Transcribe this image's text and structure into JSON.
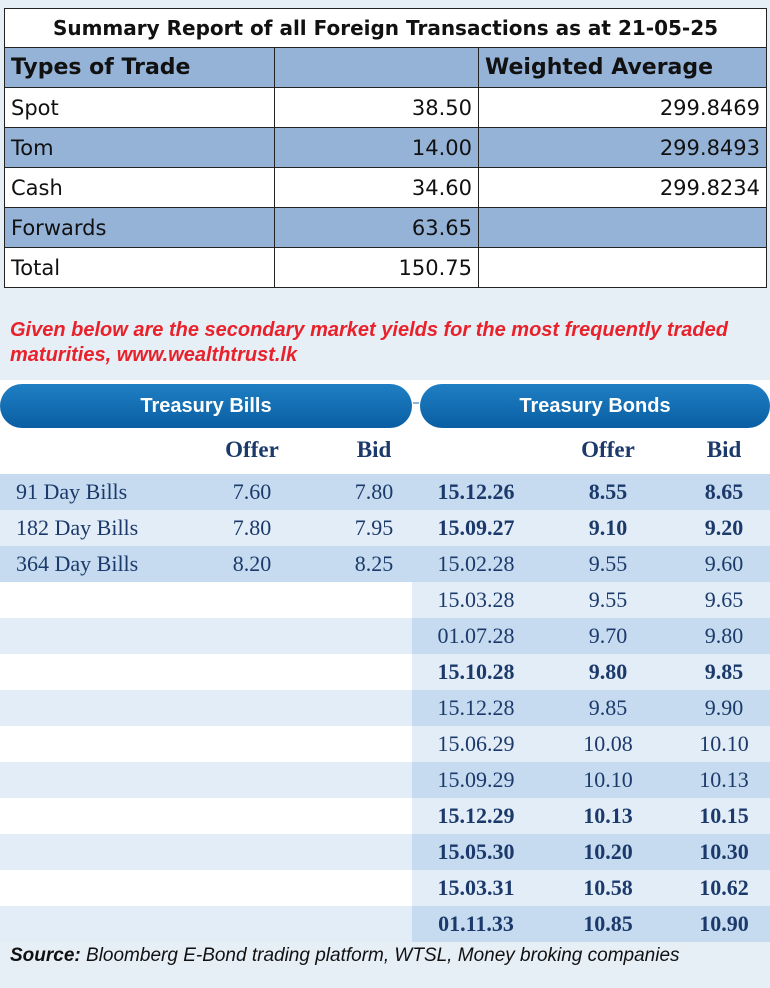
{
  "summary": {
    "title": "Summary Report of all Foreign Transactions as at 21-05-25",
    "headers": [
      "Types of Trade",
      "",
      "Weighted Average"
    ],
    "rows": [
      {
        "type": "Spot",
        "amount": "38.50",
        "wavg": "299.8469"
      },
      {
        "type": "Tom",
        "amount": "14.00",
        "wavg": "299.8493"
      },
      {
        "type": "Cash",
        "amount": "34.60",
        "wavg": "299.8234"
      },
      {
        "type": "Forwards",
        "amount": "63.65",
        "wavg": ""
      },
      {
        "type": "Total",
        "amount": "150.75",
        "wavg": ""
      }
    ]
  },
  "intro": "Given below are the secondary market yields for the most frequently traded maturities, www.wealthtrust.lk",
  "yields": {
    "bills_title": "Treasury Bills",
    "bonds_title": "Treasury Bonds",
    "headers": {
      "offer": "Offer",
      "bid": "Bid"
    },
    "bills": [
      {
        "name": "91 Day Bills",
        "offer": "7.60",
        "bid": "7.80"
      },
      {
        "name": "182 Day Bills",
        "offer": "7.80",
        "bid": "7.95"
      },
      {
        "name": "364 Day Bills",
        "offer": "8.20",
        "bid": "8.25"
      }
    ],
    "bonds": [
      {
        "maturity": "15.12.26",
        "offer": "8.55",
        "bid": "8.65",
        "bold": true
      },
      {
        "maturity": "15.09.27",
        "offer": "9.10",
        "bid": "9.20",
        "bold": true
      },
      {
        "maturity": "15.02.28",
        "offer": "9.55",
        "bid": "9.60",
        "bold": false
      },
      {
        "maturity": "15.03.28",
        "offer": "9.55",
        "bid": "9.65",
        "bold": false
      },
      {
        "maturity": "01.07.28",
        "offer": "9.70",
        "bid": "9.80",
        "bold": false
      },
      {
        "maturity": "15.10.28",
        "offer": "9.80",
        "bid": "9.85",
        "bold": true
      },
      {
        "maturity": "15.12.28",
        "offer": "9.85",
        "bid": "9.90",
        "bold": false
      },
      {
        "maturity": "15.06.29",
        "offer": "10.08",
        "bid": "10.10",
        "bold": false
      },
      {
        "maturity": "15.09.29",
        "offer": "10.10",
        "bid": "10.13",
        "bold": false
      },
      {
        "maturity": "15.12.29",
        "offer": "10.13",
        "bid": "10.15",
        "bold": true
      },
      {
        "maturity": "15.05.30",
        "offer": "10.20",
        "bid": "10.30",
        "bold": true
      },
      {
        "maturity": "15.03.31",
        "offer": "10.58",
        "bid": "10.62",
        "bold": true
      },
      {
        "maturity": "01.11.33",
        "offer": "10.85",
        "bid": "10.90",
        "bold": true
      }
    ]
  },
  "source": {
    "label": "Source:",
    "text": " Bloomberg E-Bond trading platform, WTSL, Money broking companies"
  }
}
